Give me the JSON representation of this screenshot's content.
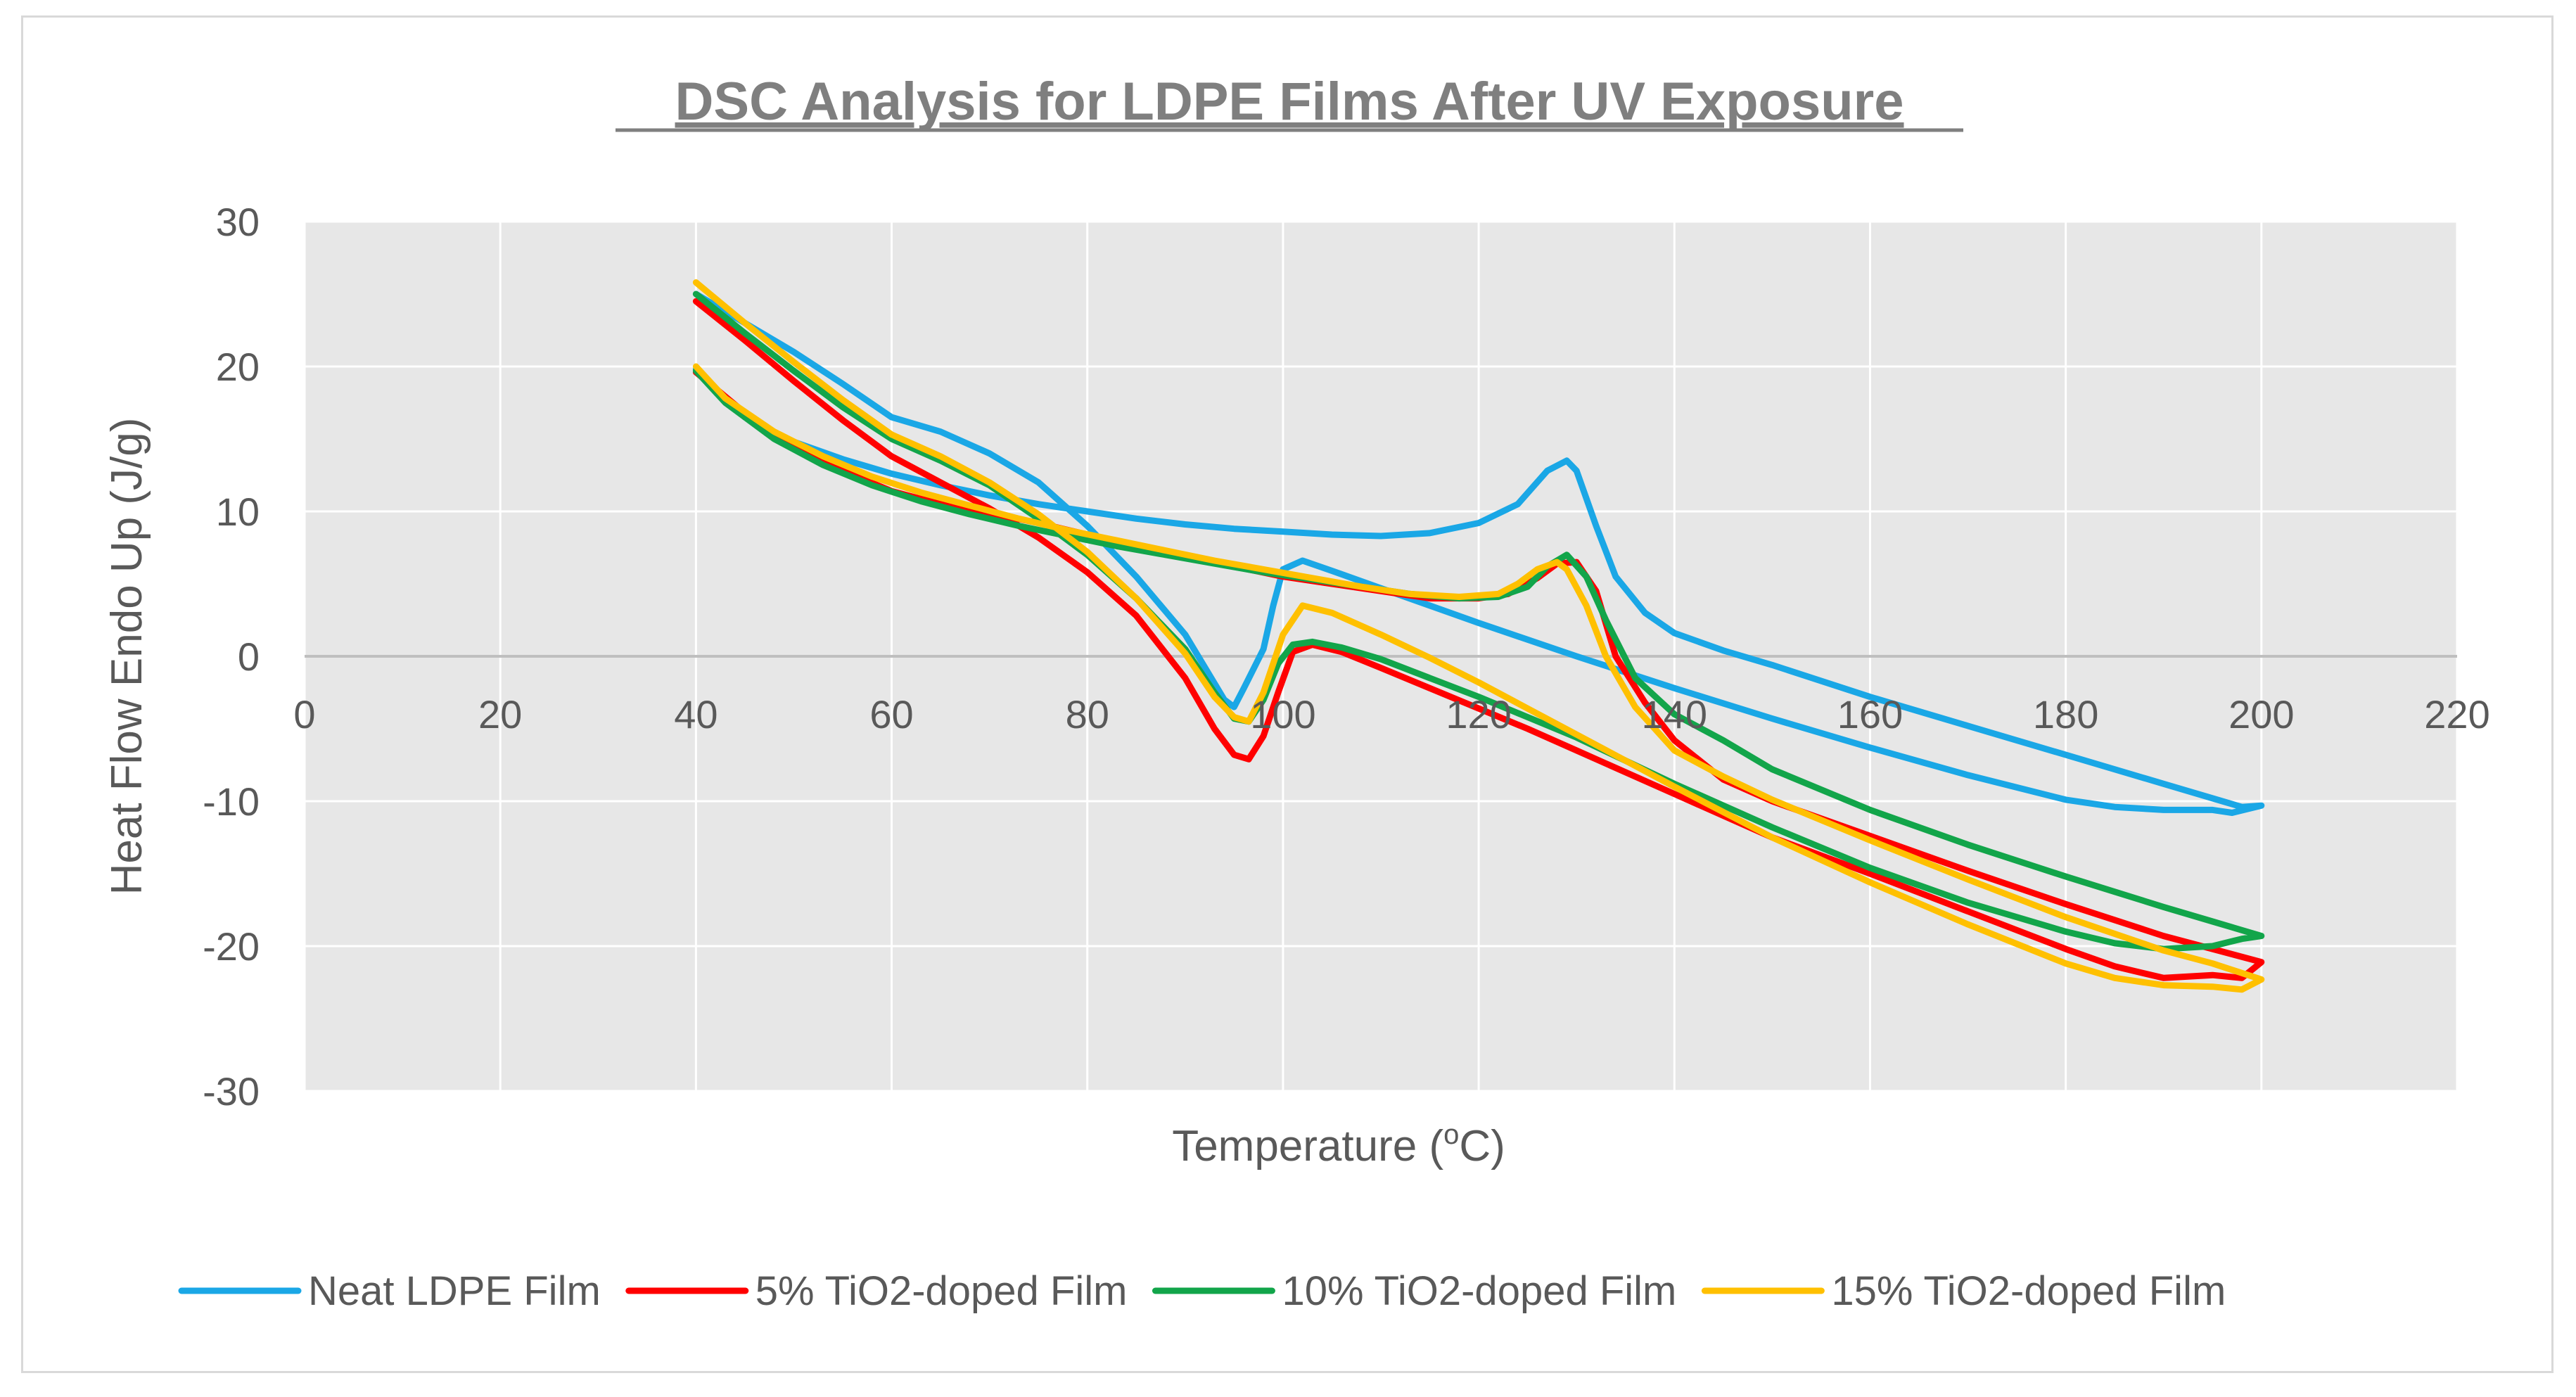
{
  "chart_data": {
    "type": "line",
    "title": "DSC Analysis for LDPE Films After UV Exposure",
    "xlabel_main": "Temperature (",
    "xlabel_sup": "o",
    "xlabel_end": "C)",
    "ylabel": "Heat Flow Endo Up (J/g)",
    "xlim": [
      0,
      220
    ],
    "ylim": [
      -30,
      30
    ],
    "x_ticks": [
      0,
      20,
      40,
      60,
      80,
      100,
      120,
      140,
      160,
      180,
      200,
      220
    ],
    "y_ticks": [
      30,
      20,
      10,
      0,
      -10,
      -20,
      -30
    ],
    "x_tick_labels": [
      "0",
      "20",
      "40",
      "60",
      "80",
      "100",
      "120",
      "140",
      "160",
      "180",
      "200",
      "220"
    ],
    "y_tick_labels": [
      "30",
      "20",
      "10",
      "0",
      "-10",
      "-20",
      "-30"
    ],
    "grid": true,
    "legend_position": "bottom",
    "plot_background": "#e7e7e7",
    "series": [
      {
        "name": "Neat LDPE Film",
        "color": "#1aa7e6",
        "points": [
          [
            40,
            19.8
          ],
          [
            45,
            16.5
          ],
          [
            50,
            14.8
          ],
          [
            55,
            13.6
          ],
          [
            60,
            12.6
          ],
          [
            65,
            11.8
          ],
          [
            70,
            11.1
          ],
          [
            75,
            10.5
          ],
          [
            80,
            10.0
          ],
          [
            85,
            9.5
          ],
          [
            90,
            9.1
          ],
          [
            95,
            8.8
          ],
          [
            100,
            8.6
          ],
          [
            105,
            8.4
          ],
          [
            110,
            8.3
          ],
          [
            115,
            8.5
          ],
          [
            120,
            9.2
          ],
          [
            124,
            10.5
          ],
          [
            127,
            12.8
          ],
          [
            129,
            13.5
          ],
          [
            130,
            12.8
          ],
          [
            132,
            9.0
          ],
          [
            134,
            5.5
          ],
          [
            137,
            3.0
          ],
          [
            140,
            1.6
          ],
          [
            145,
            0.4
          ],
          [
            150,
            -0.6
          ],
          [
            160,
            -2.8
          ],
          [
            170,
            -4.8
          ],
          [
            180,
            -6.8
          ],
          [
            190,
            -8.8
          ],
          [
            196,
            -10.0
          ],
          [
            198,
            -10.4
          ],
          [
            200,
            -10.3
          ],
          [
            197,
            -10.8
          ],
          [
            195,
            -10.6
          ],
          [
            190,
            -10.6
          ],
          [
            185,
            -10.4
          ],
          [
            180,
            -9.9
          ],
          [
            170,
            -8.2
          ],
          [
            160,
            -6.3
          ],
          [
            150,
            -4.3
          ],
          [
            140,
            -2.2
          ],
          [
            130,
            0.0
          ],
          [
            120,
            2.3
          ],
          [
            110,
            4.7
          ],
          [
            105,
            5.9
          ],
          [
            102,
            6.6
          ],
          [
            100,
            6.0
          ],
          [
            99,
            3.5
          ],
          [
            98,
            0.5
          ],
          [
            96,
            -2.2
          ],
          [
            95,
            -3.5
          ],
          [
            94,
            -3.0
          ],
          [
            90,
            1.5
          ],
          [
            85,
            5.5
          ],
          [
            80,
            9.0
          ],
          [
            75,
            12.0
          ],
          [
            70,
            14.0
          ],
          [
            65,
            15.5
          ],
          [
            60,
            16.5
          ],
          [
            55,
            18.8
          ],
          [
            50,
            21.0
          ],
          [
            45,
            23.0
          ],
          [
            40,
            25.0
          ]
        ]
      },
      {
        "name": "5% TiO2-doped Film",
        "color": "#ff0000",
        "points": [
          [
            40,
            24.5
          ],
          [
            45,
            21.8
          ],
          [
            50,
            19.0
          ],
          [
            55,
            16.3
          ],
          [
            60,
            13.8
          ],
          [
            65,
            12.0
          ],
          [
            70,
            10.2
          ],
          [
            75,
            8.2
          ],
          [
            80,
            5.8
          ],
          [
            85,
            2.8
          ],
          [
            90,
            -1.5
          ],
          [
            93,
            -5.0
          ],
          [
            95,
            -6.8
          ],
          [
            96.5,
            -7.1
          ],
          [
            98,
            -5.5
          ],
          [
            99.5,
            -2.5
          ],
          [
            101,
            0.3
          ],
          [
            103,
            0.8
          ],
          [
            106,
            0.3
          ],
          [
            110,
            -0.8
          ],
          [
            115,
            -2.2
          ],
          [
            120,
            -3.6
          ],
          [
            125,
            -5.0
          ],
          [
            130,
            -6.5
          ],
          [
            140,
            -9.5
          ],
          [
            150,
            -12.5
          ],
          [
            160,
            -15.0
          ],
          [
            170,
            -17.6
          ],
          [
            180,
            -20.2
          ],
          [
            185,
            -21.4
          ],
          [
            190,
            -22.2
          ],
          [
            195,
            -22.0
          ],
          [
            198,
            -22.2
          ],
          [
            200,
            -21.1
          ],
          [
            195,
            -20.2
          ],
          [
            190,
            -19.3
          ],
          [
            180,
            -17.1
          ],
          [
            170,
            -14.8
          ],
          [
            160,
            -12.4
          ],
          [
            150,
            -10.0
          ],
          [
            145,
            -8.5
          ],
          [
            140,
            -5.8
          ],
          [
            137,
            -3.2
          ],
          [
            134,
            0.0
          ],
          [
            132,
            4.5
          ],
          [
            130,
            6.5
          ],
          [
            128,
            6.4
          ],
          [
            126,
            5.4
          ],
          [
            123,
            4.3
          ],
          [
            120,
            4.0
          ],
          [
            115,
            4.0
          ],
          [
            110,
            4.5
          ],
          [
            105,
            5.0
          ],
          [
            100,
            5.5
          ],
          [
            95,
            6.2
          ],
          [
            90,
            6.9
          ],
          [
            85,
            7.6
          ],
          [
            80,
            8.4
          ],
          [
            75,
            9.2
          ],
          [
            70,
            9.9
          ],
          [
            65,
            10.5
          ],
          [
            60,
            11.4
          ],
          [
            55,
            12.8
          ],
          [
            50,
            14.4
          ],
          [
            45,
            16.8
          ],
          [
            40,
            19.6
          ]
        ]
      },
      {
        "name": "10% TiO2-doped Film",
        "color": "#12a54a",
        "points": [
          [
            40,
            25.0
          ],
          [
            45,
            22.3
          ],
          [
            50,
            19.7
          ],
          [
            55,
            17.2
          ],
          [
            60,
            15.0
          ],
          [
            65,
            13.5
          ],
          [
            70,
            11.8
          ],
          [
            75,
            9.5
          ],
          [
            80,
            7.0
          ],
          [
            85,
            4.0
          ],
          [
            90,
            0.5
          ],
          [
            93,
            -2.5
          ],
          [
            95,
            -4.3
          ],
          [
            96.5,
            -4.5
          ],
          [
            98,
            -3.0
          ],
          [
            99.5,
            -0.5
          ],
          [
            101,
            0.8
          ],
          [
            103,
            1.0
          ],
          [
            106,
            0.6
          ],
          [
            110,
            -0.2
          ],
          [
            115,
            -1.5
          ],
          [
            120,
            -2.8
          ],
          [
            125,
            -4.2
          ],
          [
            130,
            -5.6
          ],
          [
            140,
            -8.8
          ],
          [
            150,
            -11.8
          ],
          [
            160,
            -14.6
          ],
          [
            170,
            -17.0
          ],
          [
            180,
            -19.0
          ],
          [
            185,
            -19.8
          ],
          [
            190,
            -20.2
          ],
          [
            195,
            -20.0
          ],
          [
            198,
            -19.5
          ],
          [
            200,
            -19.3
          ],
          [
            195,
            -18.3
          ],
          [
            190,
            -17.3
          ],
          [
            180,
            -15.2
          ],
          [
            170,
            -13.0
          ],
          [
            160,
            -10.6
          ],
          [
            150,
            -7.8
          ],
          [
            145,
            -5.8
          ],
          [
            140,
            -4.0
          ],
          [
            136,
            -1.5
          ],
          [
            133,
            2.5
          ],
          [
            131,
            5.5
          ],
          [
            129,
            7.0
          ],
          [
            127,
            6.2
          ],
          [
            125,
            4.8
          ],
          [
            122,
            4.1
          ],
          [
            118,
            4.0
          ],
          [
            113,
            4.3
          ],
          [
            108,
            4.8
          ],
          [
            103,
            5.3
          ],
          [
            98,
            5.8
          ],
          [
            93,
            6.4
          ],
          [
            88,
            7.0
          ],
          [
            83,
            7.6
          ],
          [
            78,
            8.3
          ],
          [
            73,
            9.0
          ],
          [
            68,
            9.8
          ],
          [
            63,
            10.7
          ],
          [
            58,
            11.8
          ],
          [
            53,
            13.2
          ],
          [
            48,
            15.0
          ],
          [
            43,
            17.5
          ],
          [
            40,
            19.7
          ]
        ]
      },
      {
        "name": "15% TiO2-doped Film",
        "color": "#ffc000",
        "points": [
          [
            40,
            25.8
          ],
          [
            45,
            23.0
          ],
          [
            50,
            20.3
          ],
          [
            55,
            17.7
          ],
          [
            60,
            15.3
          ],
          [
            65,
            13.8
          ],
          [
            70,
            12.0
          ],
          [
            75,
            9.8
          ],
          [
            80,
            7.2
          ],
          [
            85,
            4.0
          ],
          [
            90,
            0.2
          ],
          [
            93,
            -2.8
          ],
          [
            95,
            -4.2
          ],
          [
            96.5,
            -4.5
          ],
          [
            98,
            -2.5
          ],
          [
            100,
            1.5
          ],
          [
            102,
            3.5
          ],
          [
            105,
            3.0
          ],
          [
            110,
            1.5
          ],
          [
            115,
            -0.1
          ],
          [
            120,
            -1.8
          ],
          [
            125,
            -3.6
          ],
          [
            130,
            -5.4
          ],
          [
            140,
            -9.0
          ],
          [
            150,
            -12.5
          ],
          [
            160,
            -15.6
          ],
          [
            170,
            -18.5
          ],
          [
            180,
            -21.2
          ],
          [
            185,
            -22.2
          ],
          [
            190,
            -22.7
          ],
          [
            195,
            -22.8
          ],
          [
            198,
            -23.0
          ],
          [
            200,
            -22.3
          ],
          [
            195,
            -21.2
          ],
          [
            190,
            -20.3
          ],
          [
            180,
            -18.0
          ],
          [
            170,
            -15.4
          ],
          [
            160,
            -12.7
          ],
          [
            150,
            -9.9
          ],
          [
            145,
            -8.3
          ],
          [
            140,
            -6.5
          ],
          [
            136,
            -3.5
          ],
          [
            133,
            0.0
          ],
          [
            131,
            3.5
          ],
          [
            129,
            6.0
          ],
          [
            128,
            6.5
          ],
          [
            126,
            6.0
          ],
          [
            124,
            5.0
          ],
          [
            122,
            4.3
          ],
          [
            118,
            4.1
          ],
          [
            113,
            4.3
          ],
          [
            108,
            4.8
          ],
          [
            103,
            5.4
          ],
          [
            98,
            6.0
          ],
          [
            93,
            6.6
          ],
          [
            88,
            7.3
          ],
          [
            83,
            8.0
          ],
          [
            78,
            8.7
          ],
          [
            73,
            9.5
          ],
          [
            68,
            10.4
          ],
          [
            63,
            11.3
          ],
          [
            58,
            12.4
          ],
          [
            53,
            13.8
          ],
          [
            48,
            15.5
          ],
          [
            43,
            17.8
          ],
          [
            40,
            20.0
          ]
        ]
      }
    ]
  }
}
